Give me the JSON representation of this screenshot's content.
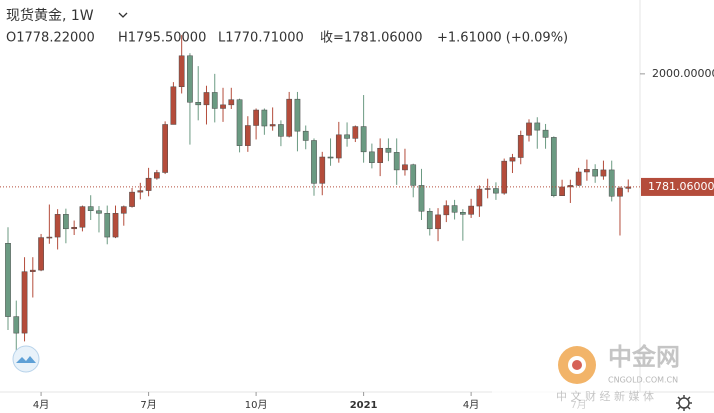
{
  "chart_data": {
    "type": "candlestick",
    "title": "现货黄金, 1W",
    "ohlc_header": {
      "open": "O1778.22000",
      "high": "H1795.50000",
      "low": "L1770.71000",
      "close": "收=1781.06000",
      "change": "+1.61000 (+0.09%)"
    },
    "categories": [
      null,
      null,
      null,
      null,
      "4月",
      null,
      null,
      null,
      null,
      null,
      null,
      null,
      null,
      null,
      null,
      null,
      null,
      "7月",
      null,
      null,
      null,
      null,
      null,
      null,
      null,
      null,
      null,
      null,
      null,
      null,
      "10月",
      null,
      null,
      null,
      null,
      null,
      null,
      null,
      null,
      null,
      null,
      null,
      null,
      "2021",
      null,
      null,
      null,
      null,
      null,
      null,
      null,
      null,
      null,
      null,
      null,
      null,
      "4月",
      null,
      null,
      null,
      null,
      null,
      null,
      null,
      null,
      null,
      null,
      null,
      null,
      "7月",
      null,
      null,
      null,
      null,
      null,
      null
    ],
    "open": [
      1672,
      1530,
      1498,
      1617,
      1620,
      1683,
      1684,
      1728,
      1700,
      1703,
      1743,
      1735,
      1730,
      1684,
      1730,
      1743,
      1771,
      1774,
      1798,
      1809,
      1902,
      1975,
      2035,
      1945,
      1940,
      1964,
      1933,
      1940,
      1950,
      1861,
      1900,
      1930,
      1899,
      1902,
      1879,
      1951,
      1889,
      1871,
      1788,
      1839,
      1837,
      1882,
      1875,
      1898,
      1849,
      1828,
      1856,
      1848,
      1814,
      1824,
      1784,
      1734,
      1700,
      1727,
      1745,
      1732,
      1728,
      1744,
      1777,
      1778,
      1769,
      1831,
      1838,
      1881,
      1905,
      1891,
      1877,
      1764,
      1781,
      1784,
      1810,
      1815,
      1802,
      1814,
      1763,
      1778.22
    ],
    "high": [
      1703,
      1561,
      1645,
      1645,
      1690,
      1747,
      1738,
      1739,
      1716,
      1745,
      1765,
      1744,
      1745,
      1745,
      1745,
      1779,
      1789,
      1818,
      1814,
      1908,
      1984,
      2075,
      2040,
      2015,
      1977,
      2000,
      1973,
      1973,
      1952,
      1918,
      1933,
      1933,
      1935,
      1910,
      1965,
      1965,
      1900,
      1875,
      1849,
      1875,
      1907,
      1906,
      1900,
      1959,
      1865,
      1875,
      1875,
      1875,
      1855,
      1826,
      1816,
      1740,
      1740,
      1755,
      1756,
      1738,
      1758,
      1784,
      1797,
      1790,
      1836,
      1845,
      1890,
      1912,
      1916,
      1903,
      1879,
      1795,
      1795,
      1818,
      1834,
      1825,
      1832,
      1832,
      1782,
      1795.5
    ],
    "low": [
      1504,
      1451,
      1482,
      1567,
      1618,
      1671,
      1660,
      1672,
      1688,
      1695,
      1717,
      1693,
      1670,
      1682,
      1706,
      1741,
      1757,
      1763,
      1795,
      1806,
      1902,
      1962,
      1863,
      1910,
      1902,
      1906,
      1907,
      1932,
      1848,
      1849,
      1873,
      1882,
      1890,
      1860,
      1877,
      1850,
      1854,
      1764,
      1765,
      1822,
      1828,
      1859,
      1868,
      1828,
      1817,
      1802,
      1831,
      1785,
      1803,
      1761,
      1717,
      1687,
      1676,
      1713,
      1718,
      1677,
      1721,
      1723,
      1759,
      1756,
      1766,
      1808,
      1825,
      1869,
      1855,
      1855,
      1761,
      1766,
      1750,
      1783,
      1793,
      1789,
      1795,
      1753,
      1687,
      1770.71
    ],
    "close": [
      1530,
      1498,
      1617,
      1620,
      1683,
      1684,
      1728,
      1700,
      1703,
      1743,
      1735,
      1730,
      1684,
      1730,
      1743,
      1771,
      1774,
      1798,
      1809,
      1902,
      1975,
      2035,
      1945,
      1940,
      1964,
      1933,
      1940,
      1950,
      1861,
      1900,
      1930,
      1899,
      1902,
      1879,
      1951,
      1889,
      1871,
      1788,
      1839,
      1837,
      1882,
      1875,
      1898,
      1849,
      1828,
      1856,
      1848,
      1814,
      1824,
      1784,
      1734,
      1700,
      1727,
      1745,
      1732,
      1728,
      1744,
      1777,
      1778,
      1769,
      1831,
      1838,
      1881,
      1905,
      1891,
      1877,
      1764,
      1781,
      1784,
      1810,
      1815,
      1802,
      1814,
      1763,
      1779,
      1781.06
    ],
    "up_color": "#b44c3b",
    "down_color": "#6b9a82",
    "ylim": [
      1384,
      2143
    ],
    "yticks": [
      {
        "value": 2000,
        "label": "2000.00000"
      }
    ],
    "last_price": {
      "value": 1781.06,
      "label": "1781.06000"
    },
    "grid": false
  },
  "watermark": {
    "brand": "中金网",
    "domain": "CNGOLD.COM.CN",
    "slogan": "中 文 财 经 新 媒 体"
  }
}
